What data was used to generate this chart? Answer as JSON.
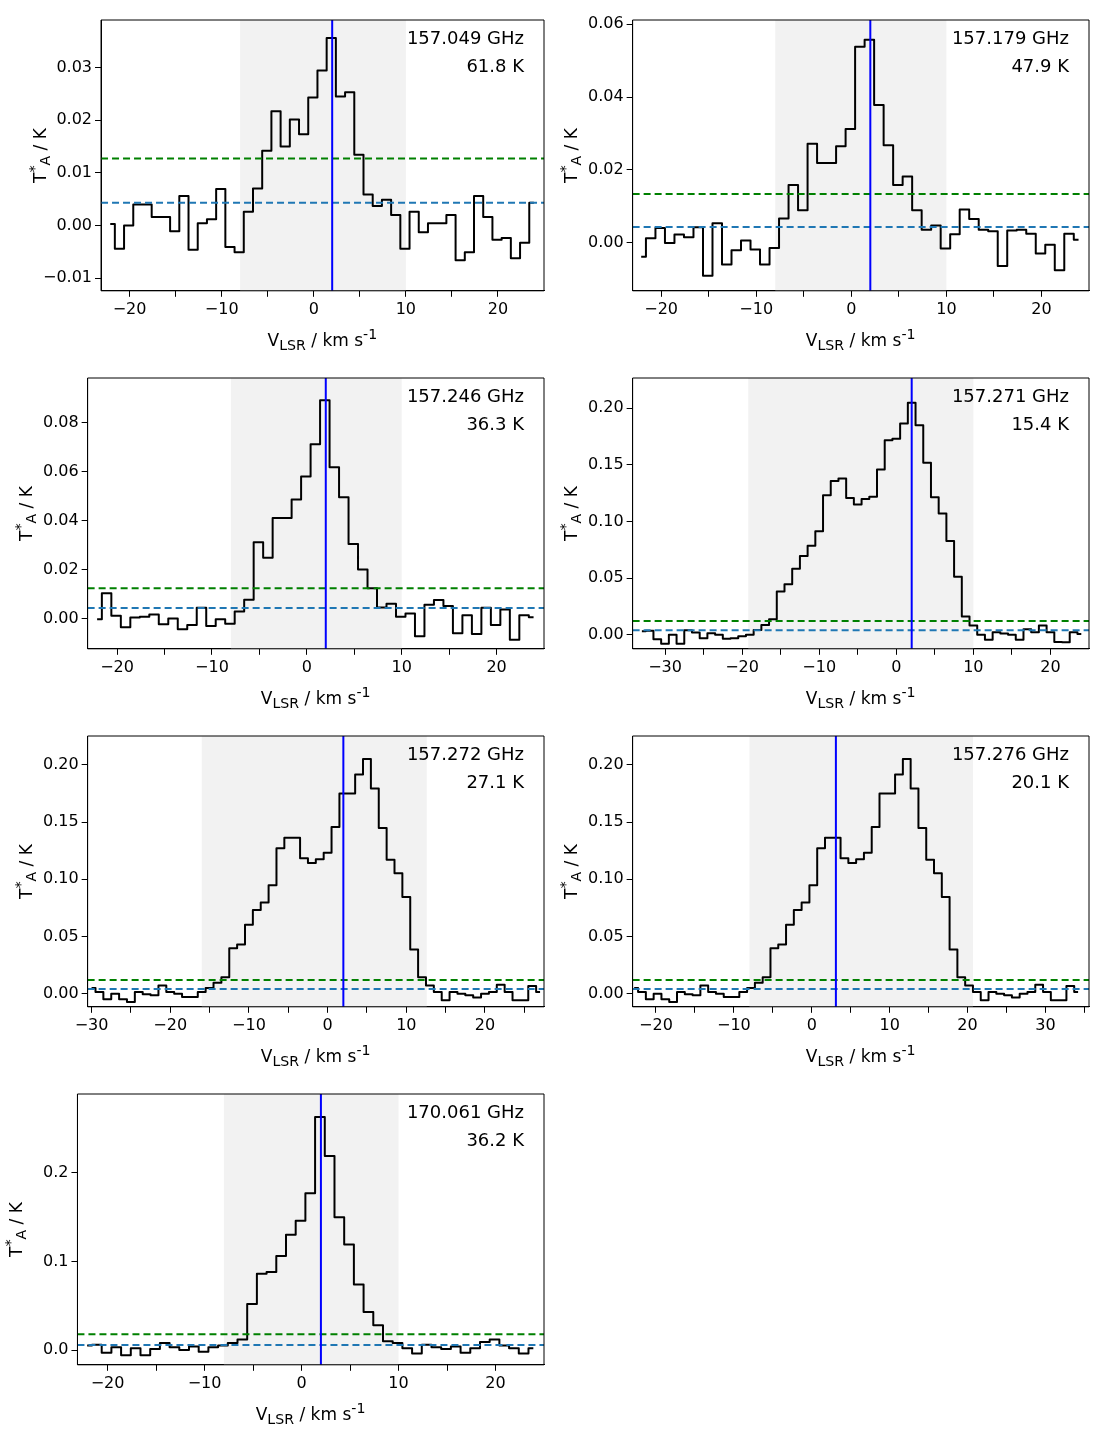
{
  "chart_data": [
    {
      "type": "step",
      "xlabel": "V$_{LSR}$ / km s$^{-1}$",
      "ylabel": "T$^{*}$$_{A}$ / K",
      "annotations": [
        "157.049 GHz",
        "61.8 K"
      ],
      "x": [
        -22.1,
        -21.1,
        -20.1,
        -19.1,
        -18.1,
        -17.1,
        -16.1,
        -15.1,
        -14.1,
        -13.1,
        -12.1,
        -11.1,
        -10.1,
        -9.1,
        -8.1,
        -7.1,
        -6.1,
        -5.1,
        -4.1,
        -3.1,
        -2.1,
        -1.1,
        -0.1,
        0.9,
        1.9,
        2.9,
        3.9,
        4.9,
        5.9,
        6.9,
        7.9,
        8.9,
        9.9,
        10.9,
        11.9,
        12.9,
        13.9,
        14.9,
        15.9,
        16.9,
        17.9,
        18.9,
        19.9,
        20.9,
        21.9,
        22.9,
        23.9
      ],
      "series": [
        {
          "color": "#000000",
          "values": [
            0.0003,
            -0.0044,
            0,
            0.004,
            0.004,
            0.0016,
            0.0016,
            -0.0011,
            0.0056,
            -0.0046,
            0.0004,
            0.0012,
            0.0069,
            -0.0041,
            -0.0051,
            0.0026,
            0.007,
            0.0142,
            0.0217,
            0.015,
            0.0201,
            0.0173,
            0.0243,
            0.0294,
            0.0356,
            0.0245,
            0.0253,
            0.0134,
            0.0059,
            0.0037,
            0.0049,
            0.002,
            -0.0044,
            0.0026,
            -0.0013,
            0.0004,
            0.0004,
            0.002,
            -0.0066,
            -0.0051,
            0.0056,
            0.0016,
            -0.0027,
            -0.0024,
            -0.0062,
            -0.0033,
            0.0043
          ]
        }
      ],
      "xlim": [
        -23.1,
        25
      ],
      "ylim": [
        -0.0124,
        0.039
      ],
      "xticks": [
        {
          "value": -20,
          "label": "−20"
        },
        {
          "value": -15,
          "label": null
        },
        {
          "value": -10,
          "label": "−10"
        },
        {
          "value": -5,
          "label": null
        },
        0,
        {
          "value": 5,
          "label": null
        },
        10,
        {
          "value": 15,
          "label": null
        },
        20
      ],
      "yticks": [
        {
          "value": -0.01,
          "label": "−0.01"
        },
        {
          "value": 0,
          "label": "0.00"
        },
        0.01,
        0.02,
        0.03
      ],
      "bands": [
        {
          "axis": "x",
          "from": -8,
          "to": 10,
          "color": "#f2f2f2"
        }
      ],
      "ref_lines": [
        {
          "axis": "y",
          "value": 0.0127,
          "color": "#008000",
          "line_style": "dashed"
        },
        {
          "axis": "y",
          "value": 0.0043,
          "color": "#1f77b4",
          "line_style": "dashed"
        },
        {
          "axis": "x",
          "value": 2,
          "color": "#0000ff",
          "line_style": "solid"
        }
      ]
    },
    {
      "type": "step",
      "xlabel": "V$_{LSR}$ / km s$^{-1}$",
      "ylabel": "T$^{*}$$_{A}$ / K",
      "annotations": [
        "157.179 GHz",
        "47.9 K"
      ],
      "x": [
        -22.1,
        -21.1,
        -20.1,
        -19.1,
        -18.1,
        -17.1,
        -16.1,
        -15.1,
        -14.1,
        -13.1,
        -12.1,
        -11.1,
        -10.1,
        -9.1,
        -8.1,
        -7.1,
        -6.1,
        -5.1,
        -4.1,
        -3.1,
        -2.1,
        -1.1,
        -0.1,
        0.9,
        1.9,
        2.9,
        3.9,
        4.9,
        5.9,
        6.9,
        7.9,
        8.9,
        9.9,
        10.9,
        11.9,
        12.9,
        13.9,
        14.9,
        15.9,
        16.9,
        17.9,
        18.9,
        19.9,
        20.9,
        21.9,
        22.9,
        23.9
      ],
      "series": [
        {
          "color": "#000000",
          "values": [
            -0.0038,
            0.0013,
            0.0041,
            0,
            0.0023,
            0.0016,
            0.0043,
            -0.009,
            0.0054,
            -0.0059,
            -0.002,
            0.0007,
            -0.0018,
            -0.0059,
            -0.0014,
            0.0067,
            0.0159,
            0.009,
            0.0272,
            0.0219,
            0.0219,
            0.0265,
            0.0312,
            0.0538,
            0.0557,
            0.0378,
            0.0268,
            0.0159,
            0.0182,
            0.009,
            0.0036,
            0.0048,
            -0.0015,
            0.0024,
            0.0092,
            0.0066,
            0.0036,
            0.0032,
            -0.0063,
            0.0034,
            0.0036,
            0.0025,
            -0.0029,
            -0.0005,
            -0.0075,
            0.0025,
            0.0009
          ]
        }
      ],
      "xlim": [
        -23,
        25
      ],
      "ylim": [
        -0.0131,
        0.0611
      ],
      "xticks": [
        {
          "value": -20,
          "label": "−20"
        },
        {
          "value": -15,
          "label": null
        },
        {
          "value": -10,
          "label": "−10"
        },
        {
          "value": -5,
          "label": null
        },
        0,
        {
          "value": 5,
          "label": null
        },
        10,
        {
          "value": 15,
          "label": null
        },
        20
      ],
      "yticks": [
        {
          "value": 0,
          "label": "0.00"
        },
        0.02,
        0.04,
        0.06
      ],
      "bands": [
        {
          "axis": "x",
          "from": -8,
          "to": 10,
          "color": "#f2f2f2"
        }
      ],
      "ref_lines": [
        {
          "axis": "y",
          "value": 0.0134,
          "color": "#008000",
          "line_style": "dashed"
        },
        {
          "axis": "y",
          "value": 0.0044,
          "color": "#1f77b4",
          "line_style": "dashed"
        },
        {
          "axis": "x",
          "value": 2,
          "color": "#0000ff",
          "line_style": "solid"
        }
      ]
    },
    {
      "type": "step",
      "xlabel": "V$_{LSR}$ / km s$^{-1}$",
      "ylabel": "T$^{*}$$_{A}$ / K",
      "annotations": [
        "157.246 GHz",
        "36.3 K"
      ],
      "x": [
        -22.1,
        -21.1,
        -20.1,
        -19.1,
        -18.1,
        -17.1,
        -16.1,
        -15.1,
        -14.1,
        -13.1,
        -12.1,
        -11.1,
        -10.1,
        -9.1,
        -8.1,
        -7.1,
        -6.1,
        -5.1,
        -4.1,
        -3.1,
        -2.1,
        -1.1,
        -0.1,
        0.9,
        1.9,
        2.9,
        3.9,
        4.9,
        5.9,
        6.9,
        7.9,
        8.9,
        9.9,
        10.9,
        11.9,
        12.9,
        13.9,
        14.9,
        15.9,
        16.9,
        17.9,
        18.9,
        19.9,
        20.9,
        21.9,
        22.9,
        23.9
      ],
      "series": [
        {
          "color": "#000000",
          "values": [
            -0.0003,
            0.0103,
            0.0011,
            -0.0036,
            0.0004,
            0.0007,
            0.0016,
            -0.0024,
            0,
            -0.0044,
            -0.0027,
            0.0044,
            -0.0031,
            -0.0003,
            -0.0021,
            0.0029,
            0.0077,
            0.0312,
            0.0249,
            0.0411,
            0.0411,
            0.0487,
            0.0581,
            0.0713,
            0.0893,
            0.0619,
            0.0496,
            0.0305,
            0.02,
            0.0124,
            0.0045,
            0.006,
            0.0007,
            0.002,
            -0.0073,
            0.0056,
            0.0076,
            0.0051,
            -0.006,
            0.0013,
            -0.0063,
            0.0044,
            -0.0027,
            0.0037,
            -0.0087,
            0.0013,
            0.0005
          ]
        }
      ],
      "xlim": [
        -23.1,
        25
      ],
      "ylim": [
        -0.0124,
        0.0984
      ],
      "xticks": [
        {
          "value": -20,
          "label": "−20"
        },
        {
          "value": -15,
          "label": null
        },
        {
          "value": -10,
          "label": "−10"
        },
        {
          "value": -5,
          "label": null
        },
        0,
        {
          "value": 5,
          "label": null
        },
        10,
        {
          "value": 15,
          "label": null
        },
        20
      ],
      "yticks": [
        {
          "value": 0,
          "label": "0.00"
        },
        0.02,
        0.04,
        0.06,
        0.08
      ],
      "bands": [
        {
          "axis": "x",
          "from": -8,
          "to": 10,
          "color": "#f2f2f2"
        }
      ],
      "ref_lines": [
        {
          "axis": "y",
          "value": 0.0124,
          "color": "#008000",
          "line_style": "dashed"
        },
        {
          "axis": "y",
          "value": 0.0043,
          "color": "#1f77b4",
          "line_style": "dashed"
        },
        {
          "axis": "x",
          "value": 2,
          "color": "#0000ff",
          "line_style": "solid"
        }
      ]
    },
    {
      "type": "step",
      "xlabel": "V$_{LSR}$ / km s$^{-1}$",
      "ylabel": "T$^{*}$$_{A}$ / K",
      "annotations": [
        "157.271 GHz",
        "15.4 K"
      ],
      "x": [
        -33,
        -32,
        -31,
        -30,
        -29,
        -28,
        -27,
        -26,
        -25,
        -24,
        -23,
        -22,
        -21,
        -20,
        -19,
        -18,
        -17,
        -16,
        -15,
        -14,
        -13,
        -12,
        -11,
        -10,
        -9,
        -8,
        -7,
        -6,
        -5,
        -4,
        -3,
        -2,
        -1,
        0,
        1,
        2,
        3,
        4,
        5,
        6,
        7,
        8,
        9,
        10,
        11,
        12,
        13,
        14,
        15,
        16,
        17,
        18,
        19,
        20,
        21,
        22,
        23,
        24
      ],
      "series": [
        {
          "color": "#000000",
          "values": [
            0.003,
            0.0035,
            -0.004,
            -0.008,
            0,
            -0.008,
            0.004,
            0.002,
            -0.003,
            0.0014,
            0,
            -0.0035,
            -0.003,
            -0.0014,
            0,
            0.0043,
            0.0086,
            0.0138,
            0.0383,
            0.0446,
            0.0584,
            0.0696,
            0.0786,
            0.0915,
            0.1232,
            0.1358,
            0.1381,
            0.1209,
            0.1151,
            0.12,
            0.122,
            0.1459,
            0.1718,
            0.1732,
            0.1865,
            0.2049,
            0.185,
            0.1519,
            0.1214,
            0.1071,
            0.0829,
            0.0512,
            0.0161,
            0.0081,
            0,
            -0.0043,
            0.0023,
            0.0012,
            0,
            -0.0043,
            0.0049,
            0.0023,
            0.0081,
            0.0023,
            -0.0063,
            -0.0066,
            0.0023,
            0.0006
          ]
        }
      ],
      "xlim": [
        -34.2,
        25
      ],
      "ylim": [
        -0.0124,
        0.2268
      ],
      "xticks": [
        {
          "value": -30,
          "label": "−30"
        },
        {
          "value": -25,
          "label": null
        },
        {
          "value": -20,
          "label": "−20"
        },
        {
          "value": -15,
          "label": null
        },
        {
          "value": -10,
          "label": "−10"
        },
        {
          "value": -5,
          "label": null
        },
        0,
        {
          "value": 5,
          "label": null
        },
        10,
        {
          "value": 15,
          "label": null
        },
        20
      ],
      "yticks": [
        {
          "value": 0,
          "label": "0.00"
        },
        0.05,
        {
          "value": 0.1,
          "label": "0.10"
        },
        0.15,
        {
          "value": 0.2,
          "label": "0.20"
        }
      ],
      "bands": [
        {
          "axis": "x",
          "from": -19.2,
          "to": 10,
          "color": "#f2f2f2"
        }
      ],
      "ref_lines": [
        {
          "axis": "y",
          "value": 0.0121,
          "color": "#008000",
          "line_style": "dashed"
        },
        {
          "axis": "y",
          "value": 0.004,
          "color": "#1f77b4",
          "line_style": "dashed"
        },
        {
          "axis": "x",
          "value": 2,
          "color": "#0000ff",
          "line_style": "solid"
        }
      ]
    },
    {
      "type": "step",
      "xlabel": "V$_{LSR}$ / km s$^{-1}$",
      "ylabel": "T$^{*}$$_{A}$ / K",
      "annotations": [
        "157.272 GHz",
        "27.1 K"
      ],
      "x": [
        -30,
        -29,
        -28,
        -27,
        -26,
        -25,
        -24,
        -23,
        -22,
        -21,
        -20,
        -19,
        -18,
        -17,
        -16,
        -15,
        -14,
        -13,
        -12,
        -11,
        -10,
        -9,
        -8,
        -7,
        -6,
        -5,
        -4,
        -3,
        -2,
        -1,
        0,
        1,
        2,
        3,
        4,
        5,
        6,
        7,
        8,
        9,
        10,
        11,
        12,
        13,
        14,
        15,
        16,
        17,
        18,
        19,
        20,
        21,
        22,
        23,
        24,
        25,
        26,
        27
      ],
      "series": [
        {
          "color": "#000000",
          "values": [
            0.0049,
            0.0014,
            -0.0049,
            0,
            -0.0049,
            -0.0072,
            0.0014,
            -0.0006,
            -0.0014,
            0.0072,
            0.0014,
            0,
            -0.0029,
            -0.0029,
            0.0014,
            0.0049,
            0.0095,
            0.0143,
            0.0396,
            0.043,
            0.0603,
            0.0732,
            0.0798,
            0.0947,
            0.1271,
            0.1363,
            0.1363,
            0.1185,
            0.1142,
            0.1176,
            0.1231,
            0.1458,
            0.175,
            0.175,
            0.1917,
            0.2052,
            0.1793,
            0.1449,
            0.1171,
            0.1053,
            0.0846,
            0.0387,
            0.0143,
            0.0072,
            0.0014,
            -0.0057,
            0.0014,
            0,
            -0.0014,
            -0.0034,
            0,
            0.0014,
            0.0077,
            0.0014,
            -0.0057,
            -0.0057,
            0.0066,
            0.0014
          ]
        }
      ],
      "xlim": [
        -30.5,
        27.5
      ],
      "ylim": [
        -0.0115,
        0.2253
      ],
      "xticks": [
        {
          "value": -30,
          "label": "−30"
        },
        {
          "value": -25,
          "label": null
        },
        {
          "value": -20,
          "label": "−20"
        },
        {
          "value": -15,
          "label": null
        },
        {
          "value": -10,
          "label": "−10"
        },
        {
          "value": -5,
          "label": null
        },
        0,
        {
          "value": 5,
          "label": null
        },
        10,
        {
          "value": 15,
          "label": null
        },
        20,
        {
          "value": 25,
          "label": null
        }
      ],
      "yticks": [
        {
          "value": 0,
          "label": "0.00"
        },
        0.05,
        {
          "value": 0.1,
          "label": "0.10"
        },
        0.15,
        {
          "value": 0.2,
          "label": "0.20"
        }
      ],
      "bands": [
        {
          "axis": "x",
          "from": -16,
          "to": 12.6,
          "color": "#f2f2f2"
        }
      ],
      "ref_lines": [
        {
          "axis": "y",
          "value": 0.012,
          "color": "#008000",
          "line_style": "dashed"
        },
        {
          "axis": "y",
          "value": 0.004,
          "color": "#1f77b4",
          "line_style": "dashed"
        },
        {
          "axis": "x",
          "value": 2,
          "color": "#0000ff",
          "line_style": "solid"
        }
      ]
    },
    {
      "type": "step",
      "xlabel": "V$_{LSR}$ / km s$^{-1}$",
      "ylabel": "T$^{*}$$_{A}$ / K",
      "annotations": [
        "157.276 GHz",
        "20.1 K"
      ],
      "x": [
        -22.8,
        -21.8,
        -20.8,
        -19.8,
        -18.8,
        -17.8,
        -16.8,
        -15.8,
        -14.8,
        -13.8,
        -12.8,
        -11.8,
        -10.8,
        -9.8,
        -8.8,
        -7.8,
        -6.8,
        -5.8,
        -4.8,
        -3.8,
        -2.8,
        -1.8,
        -0.8,
        0.2,
        1.2,
        2.2,
        3.2,
        4.2,
        5.2,
        6.2,
        7.2,
        8.2,
        9.2,
        10.2,
        11.2,
        12.2,
        13.2,
        14.2,
        15.2,
        16.2,
        17.2,
        18.2,
        19.2,
        20.2,
        21.2,
        22.2,
        23.2,
        24.2,
        25.2,
        26.2,
        27.2,
        28.2,
        29.2,
        30.2,
        31.2,
        32.2,
        33.2,
        34.2
      ],
      "series": [
        {
          "color": "#000000",
          "values": [
            0.0049,
            0.0014,
            -0.0049,
            0,
            -0.0049,
            -0.0072,
            0.0014,
            -0.0006,
            -0.0014,
            0.0072,
            0.0014,
            0,
            -0.0029,
            -0.0029,
            0.0014,
            0.0049,
            0.0095,
            0.0143,
            0.0396,
            0.043,
            0.0603,
            0.0732,
            0.0798,
            0.0947,
            0.1271,
            0.1363,
            0.1363,
            0.1185,
            0.1142,
            0.1176,
            0.1231,
            0.1458,
            0.175,
            0.175,
            0.1917,
            0.2052,
            0.1793,
            0.1449,
            0.1171,
            0.1053,
            0.0846,
            0.0387,
            0.0143,
            0.0072,
            0.0014,
            -0.0057,
            0.0014,
            0,
            -0.0014,
            -0.0034,
            0,
            0.0014,
            0.0077,
            0.0014,
            -0.0057,
            -0.0057,
            0.0066,
            0.0014
          ]
        }
      ],
      "xlim": [
        -23,
        35.6
      ],
      "ylim": [
        -0.0115,
        0.2253
      ],
      "xticks": [
        {
          "value": -20,
          "label": "−20"
        },
        {
          "value": -15,
          "label": null
        },
        {
          "value": -10,
          "label": "−10"
        },
        {
          "value": -5,
          "label": null
        },
        0,
        {
          "value": 5,
          "label": null
        },
        10,
        {
          "value": 15,
          "label": null
        },
        20,
        {
          "value": 25,
          "label": null
        },
        30,
        {
          "value": 35,
          "label": null
        }
      ],
      "yticks": [
        {
          "value": 0,
          "label": "0.00"
        },
        0.05,
        {
          "value": 0.1,
          "label": "0.10"
        },
        0.15,
        {
          "value": 0.2,
          "label": "0.20"
        }
      ],
      "bands": [
        {
          "axis": "x",
          "from": -8,
          "to": 20.7,
          "color": "#f2f2f2"
        }
      ],
      "ref_lines": [
        {
          "axis": "y",
          "value": 0.012,
          "color": "#008000",
          "line_style": "dashed"
        },
        {
          "axis": "y",
          "value": 0.004,
          "color": "#1f77b4",
          "line_style": "dashed"
        },
        {
          "axis": "x",
          "value": 3.1,
          "color": "#0000ff",
          "line_style": "solid"
        }
      ]
    },
    {
      "type": "step",
      "xlabel": "V$_{LSR}$ / km s$^{-1}$",
      "ylabel": "T$^{*}$$_{A}$ / K",
      "annotations": [
        "170.061 GHz",
        "36.2 K"
      ],
      "x": [
        -22.1,
        -21.1,
        -20.1,
        -19.1,
        -18.1,
        -17.1,
        -16.1,
        -15.1,
        -14.1,
        -13.1,
        -12.1,
        -11.1,
        -10.1,
        -9.1,
        -8.1,
        -7.1,
        -6.1,
        -5.1,
        -4.1,
        -3.1,
        -2.1,
        -1.1,
        -0.1,
        0.9,
        1.9,
        2.9,
        3.9,
        4.9,
        5.9,
        6.9,
        7.9,
        8.9,
        9.9,
        10.9,
        11.9,
        12.9,
        13.9,
        14.9,
        15.9,
        16.9,
        17.9,
        18.9,
        19.9,
        20.9,
        21.9,
        22.9,
        23.9
      ],
      "series": [
        {
          "color": "#000000",
          "values": [
            0.005,
            0.006,
            -0.003,
            0.003,
            -0.006,
            0.002,
            -0.006,
            0.001,
            0.008,
            0.003,
            0,
            0.004,
            -0.002,
            0.003,
            0.005,
            0.008,
            0.012,
            0.052,
            0.086,
            0.088,
            0.106,
            0.13,
            0.146,
            0.177,
            0.263,
            0.219,
            0.15,
            0.119,
            0.074,
            0.043,
            0.028,
            0.01,
            0.008,
            0.002,
            -0.004,
            0.006,
            0.003,
            0.001,
            0.004,
            -0.003,
            0.002,
            0.009,
            0.012,
            0.005,
            0.002,
            -0.004,
            0.002
          ]
        }
      ],
      "xlim": [
        -23.1,
        25
      ],
      "ylim": [
        -0.0167,
        0.289
      ],
      "xticks": [
        {
          "value": -20,
          "label": "−20"
        },
        {
          "value": -15,
          "label": null
        },
        {
          "value": -10,
          "label": "−10"
        },
        {
          "value": -5,
          "label": null
        },
        0,
        {
          "value": 5,
          "label": null
        },
        10,
        {
          "value": 15,
          "label": null
        },
        20
      ],
      "yticks": [
        {
          "value": 0,
          "label": "0.0"
        },
        0.1,
        0.2
      ],
      "bands": [
        {
          "axis": "x",
          "from": -8,
          "to": 10,
          "color": "#f2f2f2"
        }
      ],
      "ref_lines": [
        {
          "axis": "y",
          "value": 0.0178,
          "color": "#008000",
          "line_style": "dashed"
        },
        {
          "axis": "y",
          "value": 0.0056,
          "color": "#1f77b4",
          "line_style": "dashed"
        },
        {
          "axis": "x",
          "value": 2,
          "color": "#0000ff",
          "line_style": "solid"
        }
      ]
    }
  ]
}
